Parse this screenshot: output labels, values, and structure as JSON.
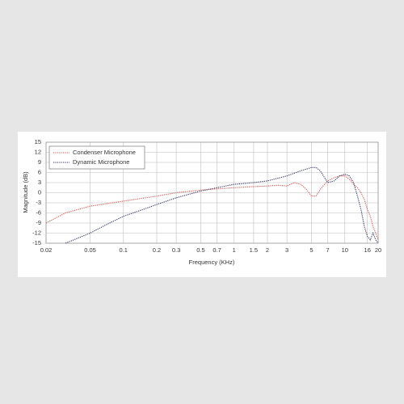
{
  "chart_data": {
    "type": "line",
    "xlabel": "Frequency (KHz)",
    "ylabel": "Magnitude (dB)",
    "xscale": "log",
    "grid": true,
    "legend": "upper left",
    "xlim": [
      0.02,
      20
    ],
    "ylim": [
      -15,
      15
    ],
    "xticks": [
      0.02,
      0.05,
      0.1,
      0.2,
      0.3,
      0.5,
      0.7,
      1,
      1.5,
      2,
      3,
      5,
      7,
      10,
      16,
      20
    ],
    "yticks": [
      -15,
      -12,
      -9,
      -6,
      -3,
      0,
      3,
      6,
      9,
      12,
      15
    ],
    "series": [
      {
        "name": "Condenser Microphone",
        "color": "#d9534f",
        "x": [
          0.02,
          0.03,
          0.05,
          0.1,
          0.2,
          0.3,
          0.5,
          1,
          1.5,
          2,
          2.5,
          3,
          3.5,
          4,
          4.5,
          5,
          5.5,
          6,
          7,
          8,
          9,
          10,
          11,
          12,
          13,
          14,
          15,
          16,
          17,
          18,
          19,
          20
        ],
        "values": [
          -9,
          -6,
          -4,
          -2.5,
          -1,
          0,
          0.8,
          1.5,
          1.8,
          2,
          2.2,
          2,
          3,
          2.5,
          1,
          -1,
          -1,
          1,
          3.5,
          4.5,
          5,
          5,
          4,
          2.5,
          1.5,
          0,
          -2,
          -5,
          -7,
          -10,
          -12,
          -14
        ]
      },
      {
        "name": "Dynamic Microphone",
        "color": "#2b2f5a",
        "x": [
          0.03,
          0.05,
          0.07,
          0.1,
          0.15,
          0.2,
          0.3,
          0.5,
          0.7,
          1,
          1.5,
          2,
          3,
          4,
          5,
          5.5,
          6,
          7,
          8,
          9,
          10,
          11,
          12,
          13,
          14,
          15,
          16,
          17,
          18,
          19,
          20
        ],
        "values": [
          -15,
          -12,
          -9.5,
          -7,
          -5,
          -3.5,
          -1.5,
          0.5,
          1.5,
          2.5,
          3,
          3.5,
          5,
          6.5,
          7.5,
          7.5,
          6.5,
          3,
          3.5,
          5,
          5.5,
          5,
          3,
          -1,
          -5,
          -10,
          -13,
          -14,
          -12,
          -14,
          -15
        ]
      }
    ]
  }
}
